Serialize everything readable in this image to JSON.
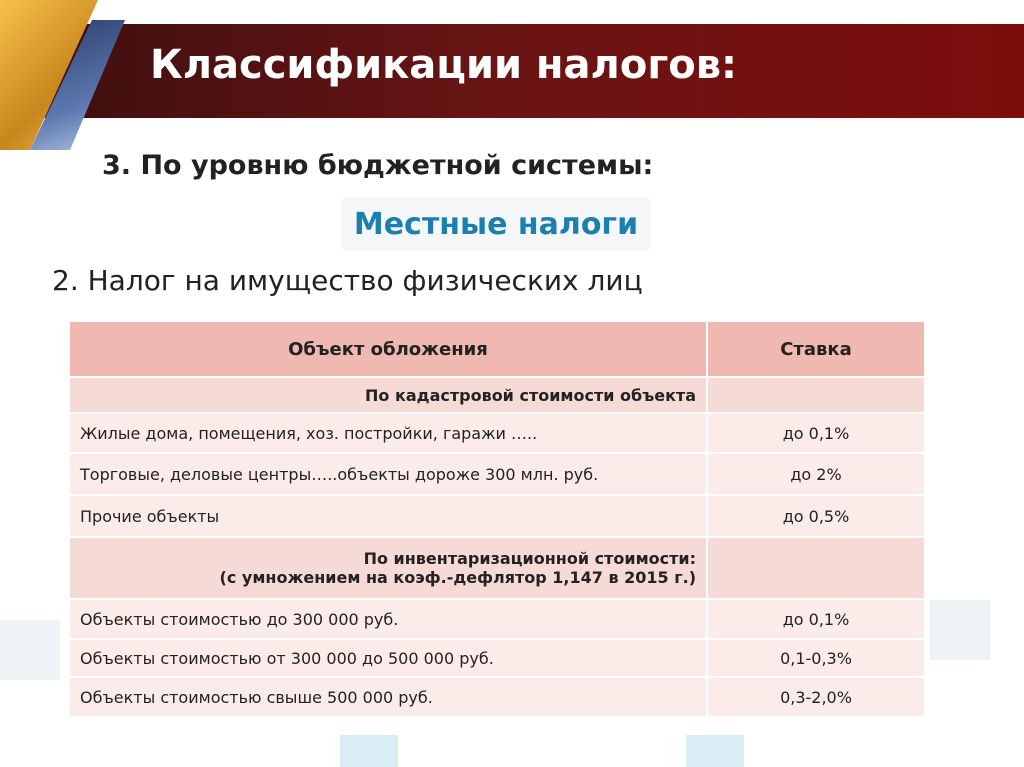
{
  "header": {
    "title": "Классификации налогов:"
  },
  "section": {
    "subtitle": "3. По уровню бюджетной системы:",
    "label": "Местные налоги",
    "heading": "2. Налог на имущество физических лиц"
  },
  "table": {
    "columns": [
      "Объект обложения",
      "Ставка"
    ],
    "rows": [
      {
        "section": [
          "По кадастровой стоимости объекта"
        ]
      },
      {
        "cells": [
          "Жилые дома, помещения, хоз. постройки, гаражи …..",
          "до 0,1%"
        ]
      },
      {
        "cells": [
          "Торговые, деловые центры…..объекты дороже 300 млн. руб.",
          "до 2%"
        ]
      },
      {
        "cells": [
          "Прочие объекты",
          "до 0,5%"
        ]
      },
      {
        "section": [
          "По инвентаризационной стоимости:",
          "(с умножением на коэф.-дефлятор 1,147 в 2015 г.)"
        ]
      },
      {
        "cells": [
          "Объекты стоимостью до 300 000 руб.",
          "до 0,1%"
        ]
      },
      {
        "cells": [
          "Объекты стоимостью от 300 000 до 500 000 руб.",
          "0,1-0,3%"
        ]
      },
      {
        "cells": [
          "Объекты стоимостью свыше 500 000 руб.",
          "0,3-2,0%"
        ]
      }
    ]
  }
}
